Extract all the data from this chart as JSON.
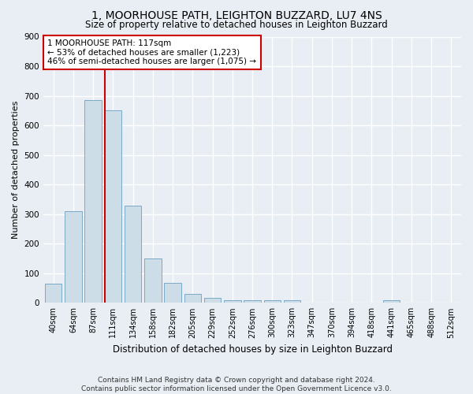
{
  "title": "1, MOORHOUSE PATH, LEIGHTON BUZZARD, LU7 4NS",
  "subtitle": "Size of property relative to detached houses in Leighton Buzzard",
  "xlabel": "Distribution of detached houses by size in Leighton Buzzard",
  "ylabel": "Number of detached properties",
  "bar_color": "#ccdde8",
  "bar_edge_color": "#7aaac8",
  "categories": [
    "40sqm",
    "64sqm",
    "87sqm",
    "111sqm",
    "134sqm",
    "158sqm",
    "182sqm",
    "205sqm",
    "229sqm",
    "252sqm",
    "276sqm",
    "300sqm",
    "323sqm",
    "347sqm",
    "370sqm",
    "394sqm",
    "418sqm",
    "441sqm",
    "465sqm",
    "488sqm",
    "512sqm"
  ],
  "values": [
    65,
    310,
    685,
    650,
    328,
    150,
    68,
    30,
    18,
    10,
    10,
    10,
    8,
    0,
    0,
    0,
    0,
    10,
    0,
    0,
    0
  ],
  "ylim": [
    0,
    900
  ],
  "yticks": [
    0,
    100,
    200,
    300,
    400,
    500,
    600,
    700,
    800,
    900
  ],
  "red_line_index": 3,
  "annotation_line1": "1 MOORHOUSE PATH: 117sqm",
  "annotation_line2": "← 53% of detached houses are smaller (1,223)",
  "annotation_line3": "46% of semi-detached houses are larger (1,075) →",
  "footer_line1": "Contains HM Land Registry data © Crown copyright and database right 2024.",
  "footer_line2": "Contains public sector information licensed under the Open Government Licence v3.0.",
  "bg_color": "#e8eef4",
  "grid_color": "#ffffff",
  "anno_bg": "#ffffff",
  "anno_edge": "#cc0000",
  "red_line_color": "#cc0000",
  "title_fontsize": 10,
  "subtitle_fontsize": 8.5,
  "ylabel_fontsize": 8,
  "xlabel_fontsize": 8.5,
  "tick_fontsize": 7,
  "anno_fontsize": 7.5,
  "footer_fontsize": 6.5
}
